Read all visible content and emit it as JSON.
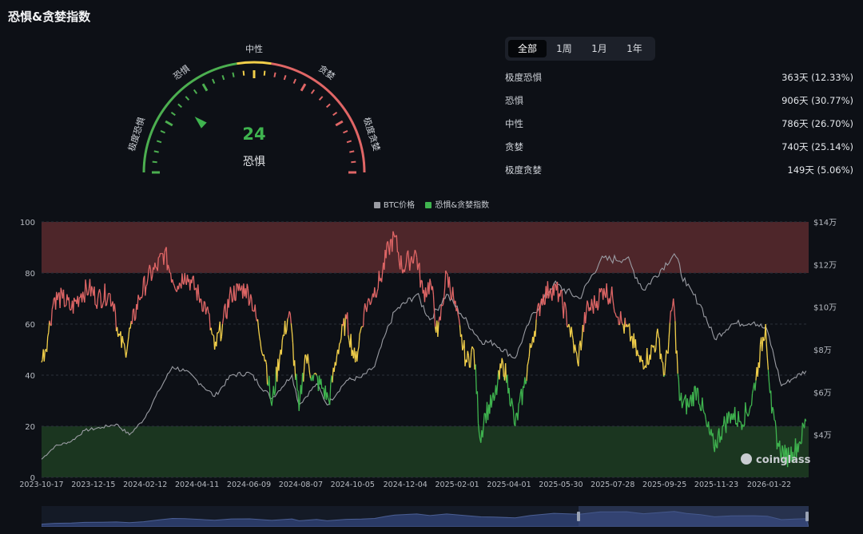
{
  "title": "恐惧&贪婪指数",
  "gauge": {
    "value": "24",
    "label": "恐惧",
    "value_num": 24,
    "zones": [
      "极度恐惧",
      "恐惧",
      "中性",
      "贪婪",
      "极度贪婪"
    ],
    "colors": {
      "fear": "#4caf50",
      "neutral": "#f2cf4a",
      "greed": "#e06666",
      "needle": "#3fb44f"
    }
  },
  "tabs": [
    {
      "label": "全部",
      "active": true
    },
    {
      "label": "1周",
      "active": false
    },
    {
      "label": "1月",
      "active": false
    },
    {
      "label": "1年",
      "active": false
    }
  ],
  "stats": [
    {
      "label": "极度恐惧",
      "value": "363天 (12.33%)"
    },
    {
      "label": "恐惧",
      "value": "906天 (30.77%)"
    },
    {
      "label": "中性",
      "value": "786天 (26.70%)"
    },
    {
      "label": "贪婪",
      "value": "740天 (25.14%)"
    },
    {
      "label": "极度贪婪",
      "value": "149天 (5.06%)"
    }
  ],
  "chart_data": {
    "type": "line",
    "legend": [
      "BTC价格",
      "恐惧&贪婪指数"
    ],
    "series_colors": {
      "btc": "#9a9ca3",
      "index_fear": "#3fb44f",
      "index_neutral": "#f2cf4a",
      "index_greed": "#e06666"
    },
    "left_axis": {
      "ticks": [
        "0",
        "20",
        "40",
        "60",
        "80",
        "100"
      ],
      "range": [
        0,
        100
      ]
    },
    "right_axis": {
      "ticks": [
        "$4万",
        "$6万",
        "$8万",
        "$10万",
        "$12万",
        "$14万"
      ],
      "range": [
        20000,
        140000
      ]
    },
    "x_ticks": [
      "2023-10-17",
      "2023-12-15",
      "2024-02-12",
      "2024-04-11",
      "2024-06-09",
      "2024-08-07",
      "2024-10-05",
      "2024-12-04",
      "2025-02-01",
      "2025-04-01",
      "2025-05-30",
      "2025-07-28",
      "2025-09-25",
      "2025-11-23",
      "2026-01-22"
    ],
    "bands": [
      {
        "from": 80,
        "to": 100,
        "color": "#5a2a2e"
      },
      {
        "from": 0,
        "to": 20,
        "color": "#1f3d22"
      }
    ],
    "fear_greed_index": [
      {
        "date": "2023-10-17",
        "value": 45
      },
      {
        "date": "2023-10-24",
        "value": 55
      },
      {
        "date": "2023-10-31",
        "value": 70
      },
      {
        "date": "2023-11-10",
        "value": 70
      },
      {
        "date": "2023-11-20",
        "value": 66
      },
      {
        "date": "2023-12-01",
        "value": 72
      },
      {
        "date": "2023-12-10",
        "value": 74
      },
      {
        "date": "2023-12-20",
        "value": 70
      },
      {
        "date": "2024-01-01",
        "value": 72
      },
      {
        "date": "2024-01-08",
        "value": 68
      },
      {
        "date": "2024-01-12",
        "value": 55
      },
      {
        "date": "2024-01-20",
        "value": 50
      },
      {
        "date": "2024-01-28",
        "value": 60
      },
      {
        "date": "2024-02-05",
        "value": 70
      },
      {
        "date": "2024-02-15",
        "value": 78
      },
      {
        "date": "2024-02-25",
        "value": 82
      },
      {
        "date": "2024-03-05",
        "value": 88
      },
      {
        "date": "2024-03-12",
        "value": 80
      },
      {
        "date": "2024-03-20",
        "value": 75
      },
      {
        "date": "2024-03-28",
        "value": 80
      },
      {
        "date": "2024-04-05",
        "value": 76
      },
      {
        "date": "2024-04-15",
        "value": 70
      },
      {
        "date": "2024-04-22",
        "value": 66
      },
      {
        "date": "2024-05-01",
        "value": 50
      },
      {
        "date": "2024-05-10",
        "value": 60
      },
      {
        "date": "2024-05-20",
        "value": 72
      },
      {
        "date": "2024-05-28",
        "value": 73
      },
      {
        "date": "2024-06-05",
        "value": 74
      },
      {
        "date": "2024-06-12",
        "value": 70
      },
      {
        "date": "2024-06-20",
        "value": 58
      },
      {
        "date": "2024-06-28",
        "value": 46
      },
      {
        "date": "2024-07-05",
        "value": 28
      },
      {
        "date": "2024-07-15",
        "value": 50
      },
      {
        "date": "2024-07-25",
        "value": 65
      },
      {
        "date": "2024-08-05",
        "value": 26
      },
      {
        "date": "2024-08-12",
        "value": 48
      },
      {
        "date": "2024-08-20",
        "value": 40
      },
      {
        "date": "2024-09-01",
        "value": 35
      },
      {
        "date": "2024-09-08",
        "value": 30
      },
      {
        "date": "2024-09-18",
        "value": 50
      },
      {
        "date": "2024-09-28",
        "value": 62
      },
      {
        "date": "2024-10-08",
        "value": 45
      },
      {
        "date": "2024-10-18",
        "value": 65
      },
      {
        "date": "2024-10-28",
        "value": 72
      },
      {
        "date": "2024-11-06",
        "value": 78
      },
      {
        "date": "2024-11-15",
        "value": 90
      },
      {
        "date": "2024-11-22",
        "value": 94
      },
      {
        "date": "2024-11-30",
        "value": 82
      },
      {
        "date": "2024-12-08",
        "value": 85
      },
      {
        "date": "2024-12-16",
        "value": 88
      },
      {
        "date": "2024-12-24",
        "value": 72
      },
      {
        "date": "2025-01-02",
        "value": 76
      },
      {
        "date": "2025-01-10",
        "value": 55
      },
      {
        "date": "2025-01-20",
        "value": 80
      },
      {
        "date": "2025-01-28",
        "value": 70
      },
      {
        "date": "2025-02-05",
        "value": 55
      },
      {
        "date": "2025-02-12",
        "value": 45
      },
      {
        "date": "2025-02-20",
        "value": 50
      },
      {
        "date": "2025-02-27",
        "value": 15
      },
      {
        "date": "2025-03-05",
        "value": 25
      },
      {
        "date": "2025-03-15",
        "value": 30
      },
      {
        "date": "2025-03-25",
        "value": 45
      },
      {
        "date": "2025-04-01",
        "value": 35
      },
      {
        "date": "2025-04-08",
        "value": 20
      },
      {
        "date": "2025-04-18",
        "value": 35
      },
      {
        "date": "2025-04-28",
        "value": 55
      },
      {
        "date": "2025-05-08",
        "value": 70
      },
      {
        "date": "2025-05-18",
        "value": 74
      },
      {
        "date": "2025-05-28",
        "value": 72
      },
      {
        "date": "2025-06-08",
        "value": 60
      },
      {
        "date": "2025-06-18",
        "value": 45
      },
      {
        "date": "2025-06-28",
        "value": 65
      },
      {
        "date": "2025-07-08",
        "value": 68
      },
      {
        "date": "2025-07-18",
        "value": 74
      },
      {
        "date": "2025-07-28",
        "value": 70
      },
      {
        "date": "2025-08-08",
        "value": 60
      },
      {
        "date": "2025-08-18",
        "value": 55
      },
      {
        "date": "2025-08-28",
        "value": 45
      },
      {
        "date": "2025-09-08",
        "value": 48
      },
      {
        "date": "2025-09-18",
        "value": 55
      },
      {
        "date": "2025-09-25",
        "value": 40
      },
      {
        "date": "2025-10-05",
        "value": 70
      },
      {
        "date": "2025-10-12",
        "value": 30
      },
      {
        "date": "2025-10-22",
        "value": 28
      },
      {
        "date": "2025-11-01",
        "value": 35
      },
      {
        "date": "2025-11-12",
        "value": 20
      },
      {
        "date": "2025-11-20",
        "value": 12
      },
      {
        "date": "2025-12-01",
        "value": 20
      },
      {
        "date": "2025-12-10",
        "value": 25
      },
      {
        "date": "2025-12-20",
        "value": 22
      },
      {
        "date": "2026-01-01",
        "value": 28
      },
      {
        "date": "2026-01-10",
        "value": 45
      },
      {
        "date": "2026-01-18",
        "value": 60
      },
      {
        "date": "2026-01-25",
        "value": 25
      },
      {
        "date": "2026-02-02",
        "value": 12
      },
      {
        "date": "2026-02-10",
        "value": 8
      },
      {
        "date": "2026-02-18",
        "value": 10
      },
      {
        "date": "2026-02-26",
        "value": 14
      },
      {
        "date": "2026-03-05",
        "value": 22
      }
    ],
    "btc_price": [
      {
        "date": "2023-10-17",
        "value": 28500
      },
      {
        "date": "2023-11-01",
        "value": 34500
      },
      {
        "date": "2023-11-20",
        "value": 37000
      },
      {
        "date": "2023-12-05",
        "value": 42000
      },
      {
        "date": "2023-12-25",
        "value": 43500
      },
      {
        "date": "2024-01-10",
        "value": 45000
      },
      {
        "date": "2024-01-25",
        "value": 40000
      },
      {
        "date": "2024-02-10",
        "value": 47000
      },
      {
        "date": "2024-02-28",
        "value": 61000
      },
      {
        "date": "2024-03-14",
        "value": 72000
      },
      {
        "date": "2024-03-28",
        "value": 70000
      },
      {
        "date": "2024-04-15",
        "value": 64000
      },
      {
        "date": "2024-05-01",
        "value": 58000
      },
      {
        "date": "2024-05-20",
        "value": 68000
      },
      {
        "date": "2024-06-10",
        "value": 69000
      },
      {
        "date": "2024-07-05",
        "value": 57000
      },
      {
        "date": "2024-07-28",
        "value": 68000
      },
      {
        "date": "2024-08-05",
        "value": 54000
      },
      {
        "date": "2024-08-25",
        "value": 64000
      },
      {
        "date": "2024-09-06",
        "value": 54000
      },
      {
        "date": "2024-09-28",
        "value": 65500
      },
      {
        "date": "2024-10-15",
        "value": 67000
      },
      {
        "date": "2024-10-30",
        "value": 72000
      },
      {
        "date": "2024-11-12",
        "value": 88000
      },
      {
        "date": "2024-11-22",
        "value": 98000
      },
      {
        "date": "2024-12-17",
        "value": 106000
      },
      {
        "date": "2025-01-01",
        "value": 94000
      },
      {
        "date": "2025-01-20",
        "value": 106000
      },
      {
        "date": "2025-02-05",
        "value": 97000
      },
      {
        "date": "2025-02-28",
        "value": 84000
      },
      {
        "date": "2025-03-15",
        "value": 83000
      },
      {
        "date": "2025-04-08",
        "value": 76000
      },
      {
        "date": "2025-04-25",
        "value": 94000
      },
      {
        "date": "2025-05-22",
        "value": 111000
      },
      {
        "date": "2025-06-20",
        "value": 104000
      },
      {
        "date": "2025-07-14",
        "value": 122000
      },
      {
        "date": "2025-08-13",
        "value": 123000
      },
      {
        "date": "2025-09-01",
        "value": 108000
      },
      {
        "date": "2025-10-06",
        "value": 125000
      },
      {
        "date": "2025-10-20",
        "value": 110000
      },
      {
        "date": "2025-11-05",
        "value": 101000
      },
      {
        "date": "2025-11-21",
        "value": 85000
      },
      {
        "date": "2025-12-10",
        "value": 92000
      },
      {
        "date": "2026-01-05",
        "value": 93000
      },
      {
        "date": "2026-01-20",
        "value": 89000
      },
      {
        "date": "2026-02-05",
        "value": 63000
      },
      {
        "date": "2026-02-20",
        "value": 67000
      },
      {
        "date": "2026-03-05",
        "value": 70000
      }
    ],
    "watermark": "coinglass"
  }
}
